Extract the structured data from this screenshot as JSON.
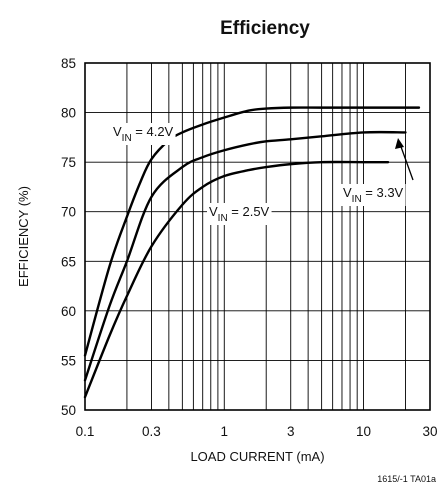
{
  "chart_data": {
    "type": "line",
    "title": "Efficiency",
    "xlabel": "LOAD CURRENT (mA)",
    "ylabel": "EFFICIENCY (%)",
    "xscale": "log",
    "xlim": [
      0.1,
      30
    ],
    "ylim": [
      50,
      85
    ],
    "xticks": [
      0.1,
      0.3,
      1,
      3,
      10,
      30
    ],
    "xtick_labels": [
      "0.1",
      "0.3",
      "1",
      "3",
      "10",
      "30"
    ],
    "yticks": [
      50,
      55,
      60,
      65,
      70,
      75,
      80,
      85
    ],
    "ytick_labels": [
      "50",
      "55",
      "60",
      "65",
      "70",
      "75",
      "80",
      "85"
    ],
    "grid": true,
    "series": [
      {
        "name_parts": [
          "V",
          "IN",
          " = 4.2V"
        ],
        "x": [
          0.1,
          0.15,
          0.2,
          0.25,
          0.3,
          0.4,
          0.5,
          0.7,
          1,
          1.5,
          2,
          3,
          5,
          10,
          20,
          25
        ],
        "y": [
          55.5,
          64.5,
          69.5,
          73,
          75.3,
          77.2,
          78,
          78.8,
          79.5,
          80.2,
          80.4,
          80.5,
          80.5,
          80.5,
          80.5,
          80.5
        ]
      },
      {
        "name_parts": [
          "V",
          "IN",
          " = 3.3V"
        ],
        "x": [
          0.1,
          0.15,
          0.2,
          0.3,
          0.5,
          0.7,
          1,
          1.5,
          2,
          3,
          5,
          10,
          20
        ],
        "y": [
          53,
          60.5,
          65,
          71.5,
          74.5,
          75.5,
          76.2,
          76.8,
          77.1,
          77.3,
          77.6,
          78,
          78
        ],
        "annotation_arrow": true
      },
      {
        "name_parts": [
          "V",
          "IN",
          " = 2.5V"
        ],
        "x": [
          0.1,
          0.15,
          0.2,
          0.3,
          0.5,
          0.7,
          1,
          1.5,
          2,
          3,
          5,
          10,
          15
        ],
        "y": [
          51.3,
          57.5,
          61.5,
          66.5,
          70.7,
          72.5,
          73.6,
          74.2,
          74.5,
          74.8,
          75,
          75,
          75
        ]
      }
    ],
    "footnote": "1615/-1 TA01a"
  }
}
